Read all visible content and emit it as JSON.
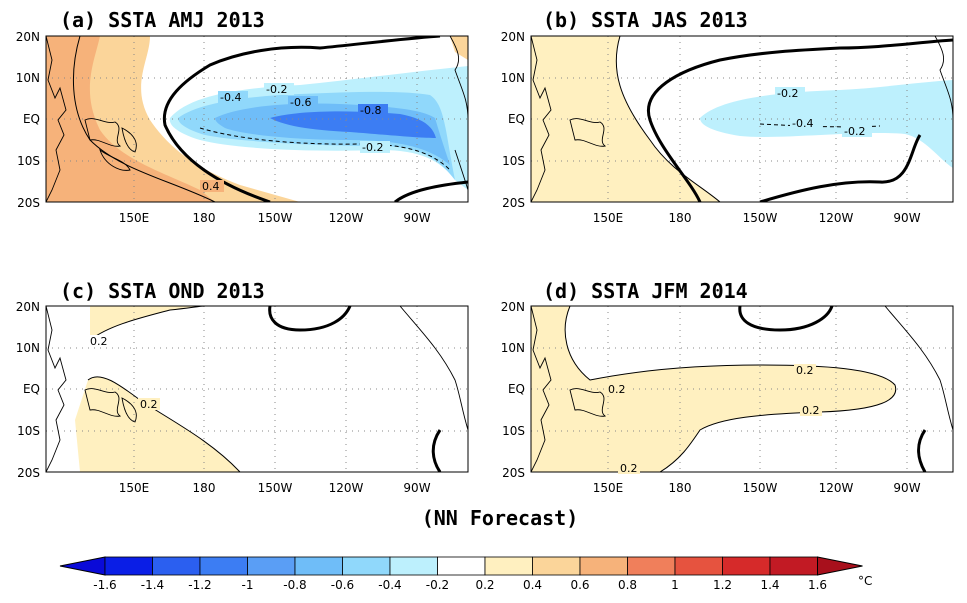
{
  "panels": [
    {
      "id": "a",
      "title": "(a) SSTA  AMJ 2013"
    },
    {
      "id": "b",
      "title": "(b) SSTA  JAS 2013"
    },
    {
      "id": "c",
      "title": "(c) SSTA  OND 2013"
    },
    {
      "id": "d",
      "title": "(d) SSTA  JFM 2014"
    }
  ],
  "lat_labels": [
    "20N",
    "10N",
    "EQ",
    "10S",
    "20S"
  ],
  "lon_labels": [
    "150E",
    "180",
    "150W",
    "120W",
    "90W"
  ],
  "contour_labels": {
    "a": [
      "-0.2",
      "-0.4",
      "-0.6",
      "-0.8",
      "-0.2",
      "0.4"
    ],
    "b": [
      "-0.2",
      "-0.4",
      "-0.2"
    ],
    "c": [
      "0.2",
      "0.2"
    ],
    "d": [
      "0.2",
      "0.2",
      "0.2",
      "0.2"
    ]
  },
  "footer": "(NN Forecast)",
  "colorbar": {
    "labels": [
      "-1.6",
      "-1.4",
      "-1.2",
      "-1",
      "-0.8",
      "-0.6",
      "-0.4",
      "-0.2",
      "0.2",
      "0.4",
      "0.6",
      "0.8",
      "1",
      "1.2",
      "1.4",
      "1.6"
    ],
    "unit": "°C",
    "colors": [
      "#0a1ee6",
      "#2b5ff0",
      "#3c7df3",
      "#5a9ef5",
      "#6fbdf8",
      "#90d8fb",
      "#bdf0fd",
      "#ffffff",
      "#fff0c0",
      "#fbd59a",
      "#f6b27a",
      "#f07f5b",
      "#e6533f",
      "#d62a2a",
      "#c21a24"
    ],
    "end_low": "#0a0ad8",
    "end_high": "#a8101c"
  }
}
